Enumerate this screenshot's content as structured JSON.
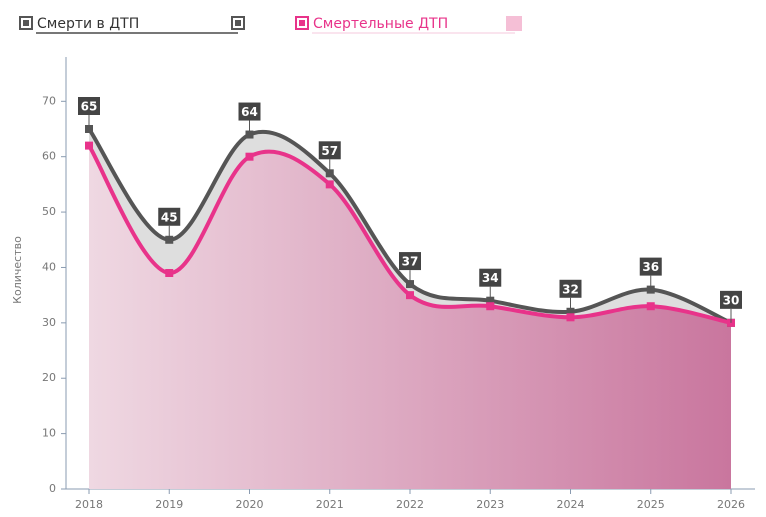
{
  "chart_data": {
    "type": "line",
    "categories": [
      "2018",
      "2019",
      "2020",
      "2021",
      "2022",
      "2023",
      "2024",
      "2025",
      "2026"
    ],
    "series": [
      {
        "name": "Смерти в ДТП",
        "color": "#555555",
        "values": [
          65,
          45,
          64,
          57,
          37,
          34,
          32,
          36,
          30
        ]
      },
      {
        "name": "Смертельные ДТП",
        "color": "#e8338a",
        "values": [
          62,
          39,
          60,
          55,
          35,
          33,
          31,
          33,
          30
        ]
      }
    ],
    "y_label": "Количество",
    "ylim": [
      0,
      78
    ],
    "yticks": [
      0,
      10,
      20,
      30,
      40,
      50,
      60,
      70
    ]
  }
}
